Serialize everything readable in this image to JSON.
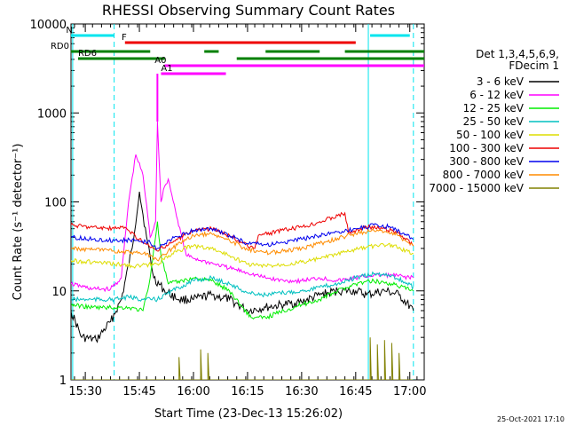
{
  "chart_data": {
    "type": "line",
    "title": "RHESSI Observing Summary Count Rates",
    "xlabel": "Start Time (23-Dec-13 15:26:02)",
    "ylabel": "Count Rate (s⁻¹ detector⁻¹)",
    "yscale": "log",
    "ylim": [
      1,
      10000
    ],
    "xlim": [
      "15:26:02",
      "17:04:00"
    ],
    "x_ticks": [
      "15:30",
      "15:45",
      "16:00",
      "16:15",
      "16:30",
      "16:45",
      "17:00"
    ],
    "y_ticks": [
      "1",
      "10",
      "100",
      "1000",
      "10000"
    ],
    "legend_position": "right",
    "legend_title": [
      "Det 1,3,4,5,6,9,",
      "FDecim 1"
    ],
    "timestamp": "25-Oct-2021 17:10",
    "flags": [
      {
        "label": "N",
        "color": "#00e5ee",
        "segments": [
          [
            "15:26",
            "15:38"
          ],
          [
            "16:49",
            "17:00"
          ]
        ]
      },
      {
        "label": "F",
        "color": "#ee0000",
        "segments": [
          [
            "15:41",
            "16:45"
          ]
        ]
      },
      {
        "label": "RD0",
        "color": "#008000",
        "segments": [
          [
            "15:26",
            "15:48"
          ],
          [
            "16:03",
            "16:07"
          ],
          [
            "16:20",
            "16:35"
          ],
          [
            "16:42",
            "17:04"
          ]
        ]
      },
      {
        "label": "RD6",
        "color": "#008000",
        "segments": [
          [
            "15:28",
            "15:52"
          ],
          [
            "16:12",
            "17:04"
          ]
        ]
      },
      {
        "label": "A0",
        "color": "#ff00ff",
        "segments": [
          [
            "15:52",
            "17:04"
          ]
        ]
      },
      {
        "label": "A1",
        "color": "#ff00ff",
        "segments": [
          [
            "15:51",
            "16:09"
          ]
        ]
      }
    ],
    "eclipse_markers": [
      {
        "time": "15:26:30",
        "style": "solid"
      },
      {
        "time": "15:38:00",
        "style": "dashed"
      },
      {
        "time": "16:48:30",
        "style": "solid"
      },
      {
        "time": "17:01:00",
        "style": "dashed"
      }
    ],
    "series": [
      {
        "name": "3 - 6 keV",
        "color": "#000000",
        "points": [
          [
            "15:26",
            6
          ],
          [
            "15:29",
            3
          ],
          [
            "15:33",
            2.8
          ],
          [
            "15:37",
            4.5
          ],
          [
            "15:40",
            8
          ],
          [
            "15:43",
            30
          ],
          [
            "15:45",
            130
          ],
          [
            "15:47",
            40
          ],
          [
            "15:49",
            14
          ],
          [
            "15:52",
            10
          ],
          [
            "15:56",
            8
          ],
          [
            "16:00",
            8
          ],
          [
            "16:05",
            9
          ],
          [
            "16:10",
            8
          ],
          [
            "16:15",
            6
          ],
          [
            "16:20",
            6.5
          ],
          [
            "16:25",
            7
          ],
          [
            "16:30",
            7.5
          ],
          [
            "16:35",
            9
          ],
          [
            "16:40",
            10
          ],
          [
            "16:45",
            10
          ],
          [
            "16:48",
            9
          ],
          [
            "16:53",
            10
          ],
          [
            "16:57",
            9
          ],
          [
            "17:01",
            6
          ]
        ]
      },
      {
        "name": "6 - 12 keV",
        "color": "#ff00ff",
        "points": [
          [
            "15:26",
            12
          ],
          [
            "15:32",
            10.5
          ],
          [
            "15:37",
            10.5
          ],
          [
            "15:40",
            14
          ],
          [
            "15:42",
            100
          ],
          [
            "15:44",
            340
          ],
          [
            "15:46",
            200
          ],
          [
            "15:48",
            40
          ],
          [
            "15:49.5",
            60
          ],
          [
            "15:50",
            800
          ],
          [
            "15:51",
            100
          ],
          [
            "15:52",
            150
          ],
          [
            "15:53",
            180
          ],
          [
            "15:55",
            80
          ],
          [
            "15:58",
            25
          ],
          [
            "16:02",
            22
          ],
          [
            "16:06",
            20
          ],
          [
            "16:10",
            18
          ],
          [
            "16:15",
            16
          ],
          [
            "16:20",
            14
          ],
          [
            "16:25",
            13
          ],
          [
            "16:30",
            13
          ],
          [
            "16:35",
            14
          ],
          [
            "16:40",
            13
          ],
          [
            "16:45",
            14
          ],
          [
            "16:50",
            15
          ],
          [
            "16:55",
            15
          ],
          [
            "17:01",
            14
          ]
        ]
      },
      {
        "name": "12 - 25 keV",
        "color": "#00ee00",
        "points": [
          [
            "15:26",
            7
          ],
          [
            "15:32",
            6.5
          ],
          [
            "15:38",
            6.5
          ],
          [
            "15:42",
            6.5
          ],
          [
            "15:46",
            6
          ],
          [
            "15:48",
            14
          ],
          [
            "15:50",
            60
          ],
          [
            "15:51",
            25
          ],
          [
            "15:53",
            12
          ],
          [
            "15:57",
            13
          ],
          [
            "16:00",
            14
          ],
          [
            "16:05",
            13
          ],
          [
            "16:10",
            10
          ],
          [
            "16:13",
            7
          ],
          [
            "16:16",
            5
          ],
          [
            "16:20",
            5
          ],
          [
            "16:25",
            6
          ],
          [
            "16:30",
            7
          ],
          [
            "16:35",
            8
          ],
          [
            "16:40",
            10
          ],
          [
            "16:45",
            12
          ],
          [
            "16:50",
            13
          ],
          [
            "16:55",
            12
          ],
          [
            "17:01",
            10
          ]
        ]
      },
      {
        "name": "25 - 50 keV",
        "color": "#00c0c0",
        "points": [
          [
            "15:26",
            8
          ],
          [
            "15:32",
            8
          ],
          [
            "15:38",
            8
          ],
          [
            "15:42",
            8.5
          ],
          [
            "15:46",
            8
          ],
          [
            "15:50",
            8
          ],
          [
            "15:54",
            10
          ],
          [
            "16:00",
            13
          ],
          [
            "16:05",
            14
          ],
          [
            "16:10",
            12
          ],
          [
            "16:15",
            9.5
          ],
          [
            "16:20",
            9
          ],
          [
            "16:25",
            9.5
          ],
          [
            "16:30",
            10
          ],
          [
            "16:35",
            11
          ],
          [
            "16:40",
            12
          ],
          [
            "16:45",
            14
          ],
          [
            "16:50",
            15.5
          ],
          [
            "16:55",
            15
          ],
          [
            "17:01",
            11
          ]
        ]
      },
      {
        "name": "50 - 100 keV",
        "color": "#dddd00",
        "points": [
          [
            "15:26",
            22
          ],
          [
            "15:32",
            21
          ],
          [
            "15:38",
            20
          ],
          [
            "15:44",
            19
          ],
          [
            "15:50",
            20
          ],
          [
            "15:55",
            28
          ],
          [
            "16:00",
            32
          ],
          [
            "16:05",
            30
          ],
          [
            "16:10",
            25
          ],
          [
            "16:15",
            20
          ],
          [
            "16:20",
            19
          ],
          [
            "16:25",
            20
          ],
          [
            "16:30",
            21
          ],
          [
            "16:35",
            23
          ],
          [
            "16:40",
            26
          ],
          [
            "16:45",
            29
          ],
          [
            "16:50",
            32
          ],
          [
            "16:55",
            33
          ],
          [
            "17:01",
            26
          ]
        ]
      },
      {
        "name": "100 - 300 keV",
        "color": "#ee0000",
        "points": [
          [
            "15:26",
            55
          ],
          [
            "15:32",
            52
          ],
          [
            "15:38",
            50
          ],
          [
            "15:41",
            52
          ],
          [
            "15:42",
            48
          ],
          [
            "15:46",
            35
          ],
          [
            "15:50",
            28
          ],
          [
            "15:54",
            35
          ],
          [
            "16:00",
            48
          ],
          [
            "16:05",
            50
          ],
          [
            "16:10",
            42
          ],
          [
            "16:15",
            32
          ],
          [
            "16:17",
            30
          ],
          [
            "16:18",
            42
          ],
          [
            "16:25",
            48
          ],
          [
            "16:30",
            52
          ],
          [
            "16:35",
            60
          ],
          [
            "16:40",
            70
          ],
          [
            "16:42",
            75
          ],
          [
            "16:43",
            45
          ],
          [
            "16:48",
            52
          ],
          [
            "16:53",
            50
          ],
          [
            "16:57",
            45
          ],
          [
            "17:01",
            32
          ]
        ]
      },
      {
        "name": "300 - 800 keV",
        "color": "#0000ee",
        "points": [
          [
            "15:26",
            40
          ],
          [
            "15:32",
            38
          ],
          [
            "15:38",
            37
          ],
          [
            "15:44",
            37
          ],
          [
            "15:48",
            35
          ],
          [
            "15:50",
            30
          ],
          [
            "15:54",
            38
          ],
          [
            "16:00",
            48
          ],
          [
            "16:05",
            50
          ],
          [
            "16:10",
            42
          ],
          [
            "16:15",
            34
          ],
          [
            "16:20",
            33
          ],
          [
            "16:25",
            35
          ],
          [
            "16:30",
            38
          ],
          [
            "16:35",
            42
          ],
          [
            "16:40",
            46
          ],
          [
            "16:45",
            50
          ],
          [
            "16:50",
            55
          ],
          [
            "16:55",
            52
          ],
          [
            "17:01",
            38
          ]
        ]
      },
      {
        "name": "800 - 7000 keV",
        "color": "#ff8c00",
        "points": [
          [
            "15:26",
            30
          ],
          [
            "15:32",
            29
          ],
          [
            "15:38",
            28
          ],
          [
            "15:44",
            27
          ],
          [
            "15:48",
            25
          ],
          [
            "15:50",
            22
          ],
          [
            "15:54",
            30
          ],
          [
            "16:00",
            42
          ],
          [
            "16:05",
            44
          ],
          [
            "16:10",
            37
          ],
          [
            "16:15",
            29
          ],
          [
            "16:20",
            27
          ],
          [
            "16:25",
            28
          ],
          [
            "16:30",
            30
          ],
          [
            "16:35",
            34
          ],
          [
            "16:40",
            39
          ],
          [
            "16:45",
            44
          ],
          [
            "16:50",
            48
          ],
          [
            "16:55",
            46
          ],
          [
            "17:01",
            32
          ]
        ]
      },
      {
        "name": "7000 - 15000 keV",
        "color": "#808000",
        "points": [
          [
            "15:26",
            1
          ],
          [
            "15:56",
            1
          ],
          [
            "15:56",
            1.8
          ],
          [
            "15:56.3",
            1
          ],
          [
            "16:02",
            1
          ],
          [
            "16:02",
            2.2
          ],
          [
            "16:02.3",
            1
          ],
          [
            "16:04",
            1
          ],
          [
            "16:04",
            2
          ],
          [
            "16:04.3",
            1
          ],
          [
            "16:49",
            1
          ],
          [
            "16:49",
            3
          ],
          [
            "16:49.3",
            1
          ],
          [
            "16:51",
            1
          ],
          [
            "16:51",
            2.5
          ],
          [
            "16:51.3",
            1
          ],
          [
            "16:53",
            1
          ],
          [
            "16:53",
            2.8
          ],
          [
            "16:53.3",
            1
          ],
          [
            "16:55",
            1
          ],
          [
            "16:55",
            2.6
          ],
          [
            "16:55.3",
            1
          ],
          [
            "16:57",
            1
          ],
          [
            "16:57",
            2
          ],
          [
            "16:57.3",
            1
          ],
          [
            "17:01",
            1
          ]
        ]
      }
    ]
  }
}
